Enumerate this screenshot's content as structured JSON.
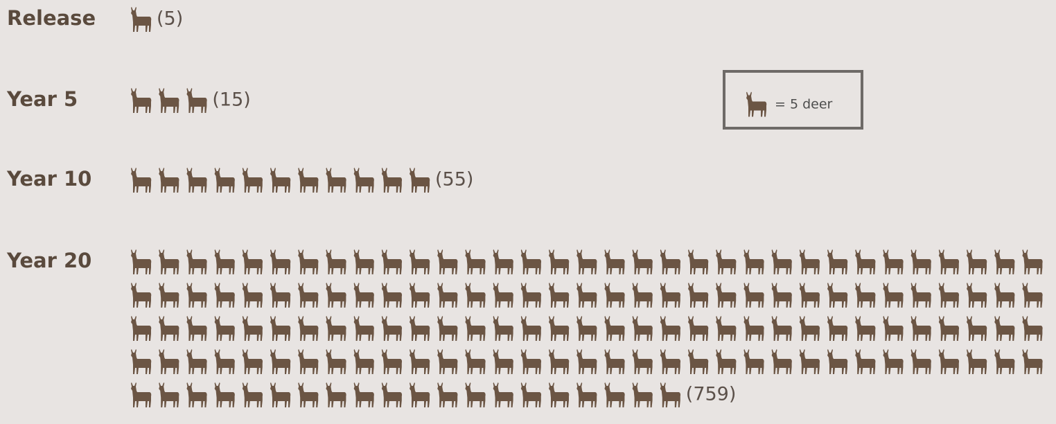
{
  "chart_data": {
    "type": "pictogram",
    "categories": [
      "Release",
      "Year 5",
      "Year 10",
      "Year 20"
    ],
    "values": [
      5,
      15,
      55,
      759
    ],
    "value_labels": [
      "(5)",
      "(15)",
      "(55)",
      "(759)"
    ],
    "color": "#6b5544",
    "legend": {
      "label": "= 5 deer",
      "unit": 5
    }
  }
}
